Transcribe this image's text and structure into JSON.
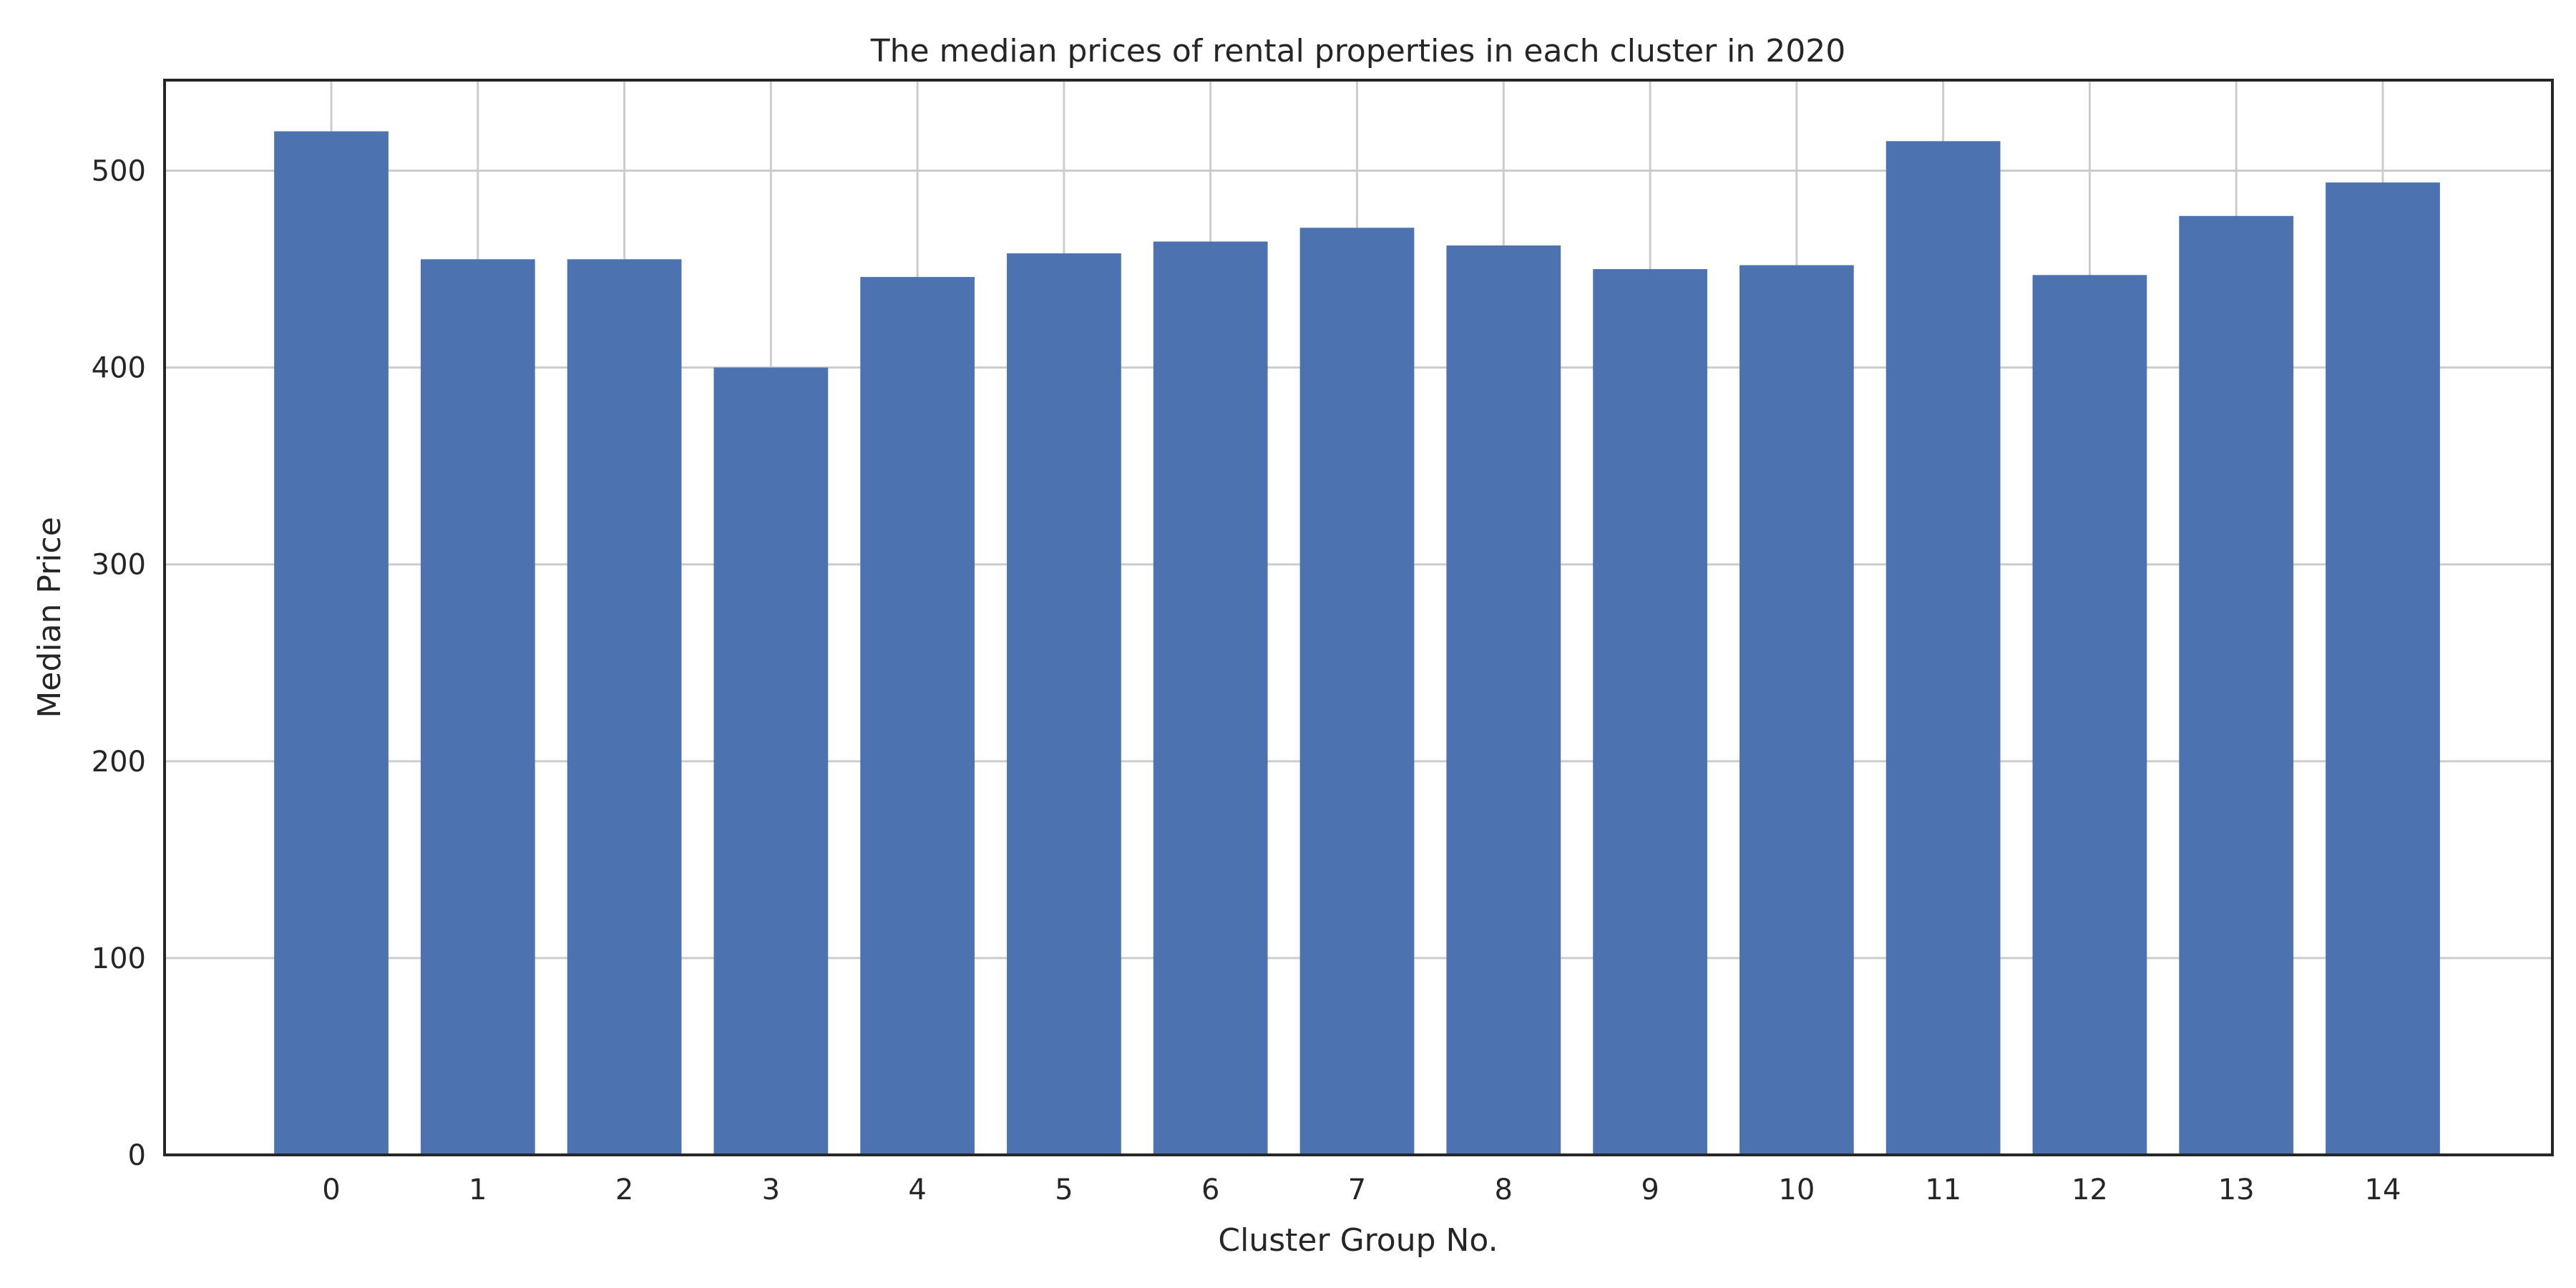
{
  "chart_data": {
    "type": "bar",
    "title": "The median prices of rental properties in each cluster in 2020",
    "xlabel": "Cluster Group No.",
    "ylabel": "Median Price",
    "categories": [
      "0",
      "1",
      "2",
      "3",
      "4",
      "5",
      "6",
      "7",
      "8",
      "9",
      "10",
      "11",
      "12",
      "13",
      "14"
    ],
    "values": [
      520,
      455,
      455,
      400,
      446,
      458,
      464,
      471,
      462,
      450,
      452,
      515,
      447,
      477,
      494
    ],
    "ylim": [
      0,
      546
    ],
    "yticks": [
      "0",
      "100",
      "200",
      "300",
      "400",
      "500"
    ],
    "grid": true,
    "bar_color": "#4c72b0"
  }
}
